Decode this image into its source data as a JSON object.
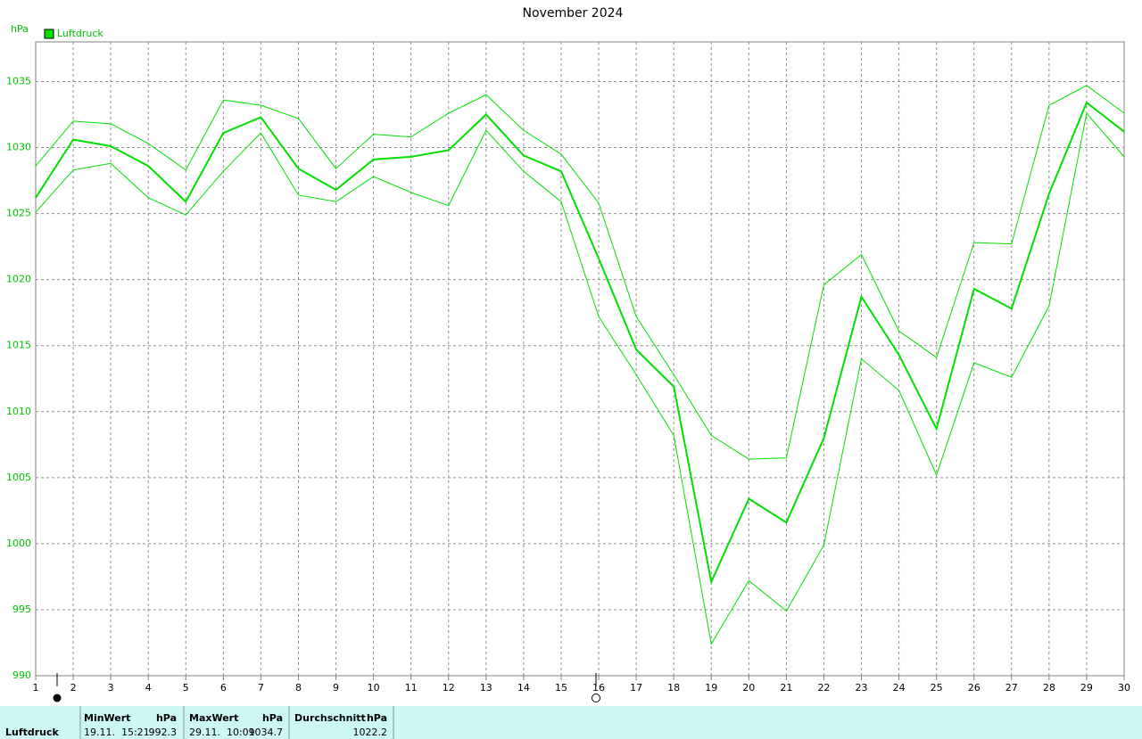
{
  "chart_data": {
    "type": "line",
    "title": "November 2024",
    "y_label": "hPa",
    "x": [
      1,
      2,
      3,
      4,
      5,
      6,
      7,
      8,
      9,
      10,
      11,
      12,
      13,
      14,
      15,
      16,
      17,
      18,
      19,
      20,
      21,
      22,
      23,
      24,
      25,
      26,
      27,
      28,
      29,
      30
    ],
    "series": [
      {
        "name": "Luftdruck",
        "color": "#00e000",
        "width": 2,
        "values": [
          1026.2,
          1030.6,
          1030.1,
          1028.6,
          1025.9,
          1031.1,
          1032.3,
          1028.4,
          1026.8,
          1029.1,
          1029.3,
          1029.8,
          1032.5,
          1029.4,
          1028.2,
          1021.6,
          1014.7,
          1011.9,
          997.1,
          1003.4,
          1001.6,
          1008.0,
          1018.7,
          1014.3,
          1008.7,
          1019.3,
          1017.8,
          1026.5,
          1033.4,
          1031.2
        ]
      },
      {
        "color": "#00e000",
        "width": 1,
        "values": [
          1028.6,
          1032.0,
          1031.8,
          1030.3,
          1028.3,
          1033.6,
          1033.2,
          1032.2,
          1028.4,
          1031.0,
          1030.8,
          1032.6,
          1034.0,
          1031.3,
          1029.5,
          1025.8,
          1017.2,
          1012.8,
          1008.2,
          1006.4,
          1006.5,
          1019.6,
          1021.9,
          1016.1,
          1014.1,
          1022.8,
          1022.7,
          1033.2,
          1034.7,
          1032.6
        ]
      },
      {
        "color": "#00e000",
        "width": 1,
        "values": [
          1025.1,
          1028.3,
          1028.8,
          1026.2,
          1024.9,
          1028.2,
          1031.1,
          1026.4,
          1025.9,
          1027.8,
          1026.6,
          1025.6,
          1031.3,
          1028.2,
          1025.9,
          1017.2,
          1012.8,
          1008.2,
          992.4,
          997.2,
          994.9,
          999.9,
          1014.0,
          1011.6,
          1005.2,
          1013.7,
          1012.6,
          1018.0,
          1032.6,
          1029.3
        ]
      }
    ],
    "xlim": [
      1,
      30
    ],
    "xticks": [
      1,
      2,
      3,
      4,
      5,
      6,
      7,
      8,
      9,
      10,
      11,
      12,
      13,
      14,
      15,
      16,
      17,
      18,
      19,
      20,
      21,
      22,
      23,
      24,
      25,
      26,
      27,
      28,
      29,
      30
    ],
    "ylim": [
      990,
      1038
    ],
    "yticks": [
      990,
      995,
      1000,
      1005,
      1010,
      1015,
      1020,
      1025,
      1030,
      1035
    ],
    "grid": true,
    "legend": "top-left"
  },
  "stats": {
    "name": "Luftdruck",
    "min": {
      "label": "MinWert",
      "unit": "hPa",
      "time": "19.11.  15:21",
      "value": "992.3"
    },
    "max": {
      "label": "MaxWert",
      "unit": "hPa",
      "time": "29.11.  10:09",
      "value": "1034.7"
    },
    "avg": {
      "label": "Durchschnitt",
      "unit": "hPa",
      "value": "1022.2"
    }
  }
}
